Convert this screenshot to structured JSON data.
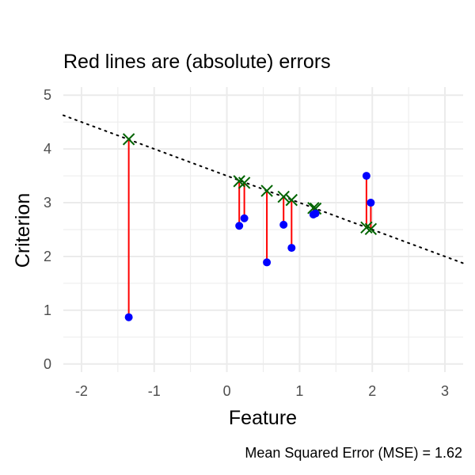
{
  "chart_data": {
    "type": "scatter",
    "title": "Red lines are (absolute) errors",
    "xlabel": "Feature",
    "ylabel": "Criterion",
    "caption": "Mean Squared Error (MSE) =  1.62",
    "xlim": [
      -2.25,
      3.25
    ],
    "ylim": [
      -0.15,
      5.15
    ],
    "x_ticks": [
      -2,
      -1,
      0,
      1,
      2,
      3
    ],
    "y_ticks": [
      0,
      1,
      2,
      3,
      4,
      5
    ],
    "grid": true,
    "regression_line": {
      "slope": -0.5,
      "intercept": 3.5,
      "style": "dotted",
      "color": "#000000"
    },
    "points": [
      {
        "x": -1.35,
        "y": 0.87,
        "y_pred": 4.18
      },
      {
        "x": 0.17,
        "y": 2.57,
        "y_pred": 3.4
      },
      {
        "x": 0.24,
        "y": 2.71,
        "y_pred": 3.37
      },
      {
        "x": 0.55,
        "y": 1.89,
        "y_pred": 3.22
      },
      {
        "x": 0.78,
        "y": 2.59,
        "y_pred": 3.11
      },
      {
        "x": 0.89,
        "y": 2.16,
        "y_pred": 3.05
      },
      {
        "x": 1.19,
        "y": 2.78,
        "y_pred": 2.9
      },
      {
        "x": 1.22,
        "y": 2.8,
        "y_pred": 2.89
      },
      {
        "x": 1.92,
        "y": 3.5,
        "y_pred": 2.54
      },
      {
        "x": 1.98,
        "y": 3.0,
        "y_pred": 2.51
      }
    ],
    "colors": {
      "observed": "#0000ff",
      "predicted": "#006400",
      "error": "#ff0000",
      "grid": "#ebebeb",
      "tick_text": "#4d4d4d"
    }
  }
}
